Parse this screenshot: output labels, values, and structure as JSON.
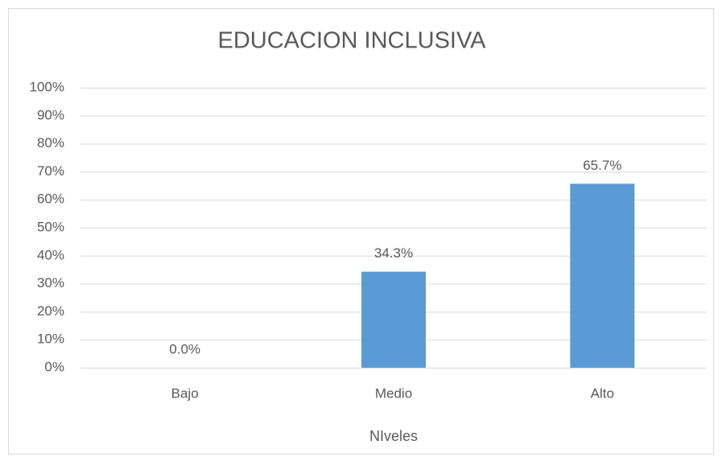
{
  "chart_data": {
    "type": "bar",
    "title": "EDUCACION INCLUSIVA",
    "categories": [
      "Bajo",
      "Medio",
      "Alto"
    ],
    "values": [
      0,
      34.3,
      65.7
    ],
    "value_labels": [
      "0.0%",
      "34.3%",
      "65.7%"
    ],
    "color": "#5b9bd5",
    "xlabel": "NIveles",
    "ylim": [
      0,
      100
    ],
    "yticks": [
      {
        "value": 0,
        "label": "0%"
      },
      {
        "value": 10,
        "label": "10%"
      },
      {
        "value": 20,
        "label": "20%"
      },
      {
        "value": 30,
        "label": "30%"
      },
      {
        "value": 40,
        "label": "40%"
      },
      {
        "value": 50,
        "label": "50%"
      },
      {
        "value": 60,
        "label": "60%"
      },
      {
        "value": 70,
        "label": "70%"
      },
      {
        "value": 80,
        "label": "80%"
      },
      {
        "value": 90,
        "label": "90%"
      },
      {
        "value": 100,
        "label": "100%"
      }
    ],
    "grid": true
  }
}
